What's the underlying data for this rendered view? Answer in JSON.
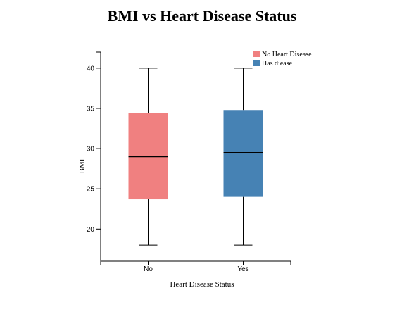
{
  "chart_data": {
    "type": "box",
    "title": "BMI vs Heart Disease Status",
    "xlabel": "Heart Disease Status",
    "ylabel": "BMI",
    "ylim": [
      16,
      42
    ],
    "yticks": [
      20,
      25,
      30,
      35,
      40
    ],
    "categories": [
      "No",
      "Yes"
    ],
    "series": [
      {
        "name": "No Heart Disease",
        "category": "No",
        "color": "#f08080",
        "min": 18,
        "q1": 23.7,
        "median": 29.0,
        "q3": 34.4,
        "max": 40
      },
      {
        "name": "Has diease",
        "category": "Yes",
        "color": "#4682b4",
        "min": 18,
        "q1": 24.0,
        "median": 29.5,
        "q3": 34.8,
        "max": 40
      }
    ],
    "legend_position": "top-right",
    "grid": false
  }
}
